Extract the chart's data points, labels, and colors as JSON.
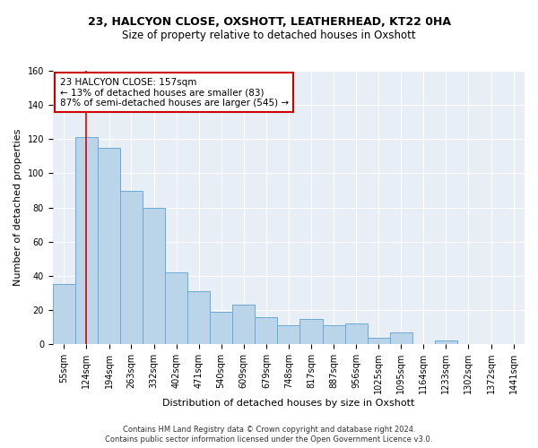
{
  "title1": "23, HALCYON CLOSE, OXSHOTT, LEATHERHEAD, KT22 0HA",
  "title2": "Size of property relative to detached houses in Oxshott",
  "xlabel": "Distribution of detached houses by size in Oxshott",
  "ylabel": "Number of detached properties",
  "bar_values": [
    35,
    121,
    115,
    90,
    80,
    42,
    31,
    19,
    23,
    16,
    11,
    15,
    11,
    12,
    4,
    7,
    0,
    2,
    0,
    0,
    0
  ],
  "bar_labels": [
    "55sqm",
    "124sqm",
    "194sqm",
    "263sqm",
    "332sqm",
    "402sqm",
    "471sqm",
    "540sqm",
    "609sqm",
    "679sqm",
    "748sqm",
    "817sqm",
    "887sqm",
    "956sqm",
    "1025sqm",
    "1095sqm",
    "1164sqm",
    "1233sqm",
    "1302sqm",
    "1372sqm",
    "1441sqm"
  ],
  "bin_edges": [
    55,
    124,
    194,
    263,
    332,
    402,
    471,
    540,
    609,
    679,
    748,
    817,
    887,
    956,
    1025,
    1095,
    1164,
    1233,
    1302,
    1372,
    1441,
    1510
  ],
  "bar_color": "#bad4ea",
  "bar_edge_color": "#6aaad4",
  "bg_color": "#e8eef6",
  "grid_color": "#ffffff",
  "red_line_x": 157,
  "red_line_color": "#dd0000",
  "annotation_line1": "23 HALCYON CLOSE: 157sqm",
  "annotation_line2": "← 13% of detached houses are smaller (83)",
  "annotation_line3": "87% of semi-detached houses are larger (545) →",
  "annotation_box_color": "#ffffff",
  "annotation_box_edge": "#cc0000",
  "ylim": [
    0,
    160
  ],
  "ytick_interval": 20,
  "title1_fontsize": 9,
  "title2_fontsize": 8.5,
  "axis_label_fontsize": 8,
  "tick_fontsize": 7,
  "annotation_fontsize": 7.5,
  "footer1": "Contains HM Land Registry data © Crown copyright and database right 2024.",
  "footer2": "Contains public sector information licensed under the Open Government Licence v3.0.",
  "footer_fontsize": 6
}
